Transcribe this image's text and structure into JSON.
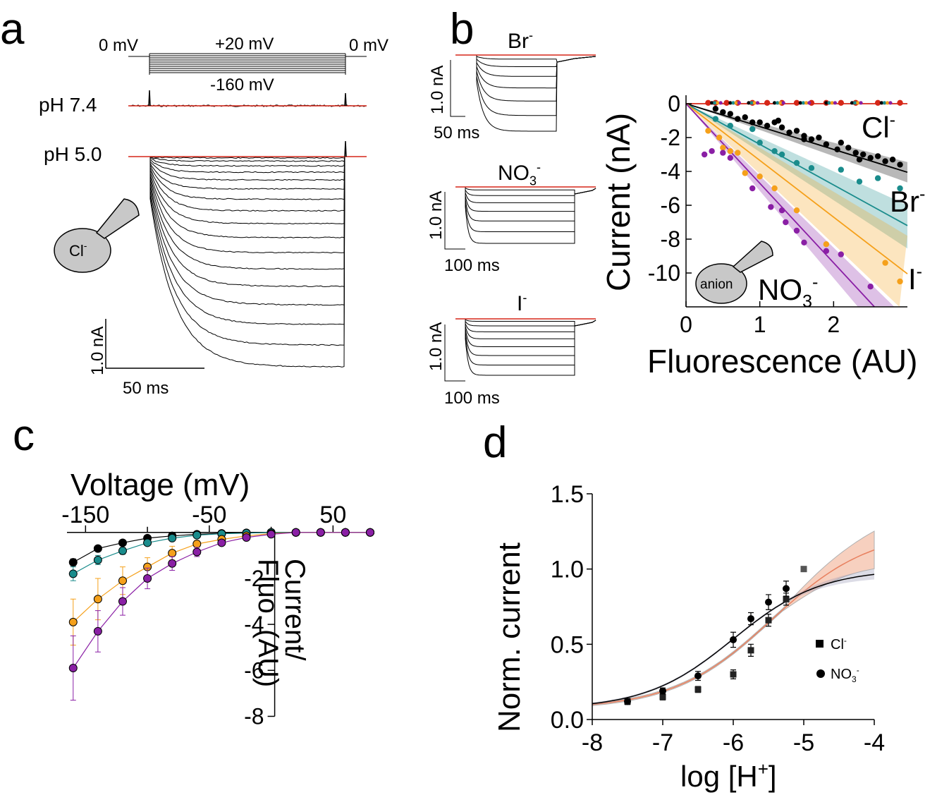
{
  "colors": {
    "black": "#000000",
    "red": "#d62718",
    "teal": "#1a8c8c",
    "orange": "#f5a01a",
    "purple": "#8a1fa5",
    "salmon": "#f0a98a",
    "gray_fill": "#cccccc"
  },
  "panel_a": {
    "letter": "a",
    "protocol": {
      "v_start": "0 mV",
      "v_step": "+20 mV",
      "v_end": "0 mV",
      "v_min": "-160 mV"
    },
    "ph_high": "pH 7.4",
    "ph_low": "pH 5.0",
    "pipette_ion": "Cl",
    "pipette_ion_sup": "-",
    "scale_y": "1.0 nA",
    "scale_x": "50 ms",
    "n_traces": 17
  },
  "panel_b": {
    "letter": "b",
    "traces": [
      {
        "ion": "Br",
        "sup": "-",
        "sub": "",
        "scale_y": "1.0 nA",
        "scale_x": "50 ms"
      },
      {
        "ion": "NO",
        "sup": "-",
        "sub": "3",
        "scale_y": "1.0 nA",
        "scale_x": "100 ms"
      },
      {
        "ion": "I",
        "sup": "-",
        "sub": "",
        "scale_y": "1.0 nA",
        "scale_x": "100 ms"
      }
    ],
    "pipette_label": "anion"
  },
  "panel_c": {
    "letter": "c"
  },
  "panel_d": {
    "letter": "d"
  },
  "chart_data": [
    {
      "id": "b_scatter",
      "type": "scatter",
      "title": "",
      "xlabel": "Fluorescence (AU)",
      "ylabel": "Current (nA)",
      "xlim": [
        0,
        3
      ],
      "ylim": [
        -12,
        0.5
      ],
      "xticks": [
        0,
        1,
        2
      ],
      "yticks": [
        0,
        -2,
        -4,
        -6,
        -8,
        -10
      ],
      "series": [
        {
          "name": "Cl",
          "sup": "-",
          "sub": "",
          "color_key": "black",
          "slope": -1.35,
          "band": [
            -1.15,
            -1.55
          ],
          "points": [
            [
              0.4,
              -0.3
            ],
            [
              0.5,
              -0.5
            ],
            [
              0.6,
              -0.6
            ],
            [
              0.7,
              -0.9
            ],
            [
              0.8,
              -0.8
            ],
            [
              0.9,
              -1.1
            ],
            [
              1.0,
              -1.1
            ],
            [
              1.1,
              -1.3
            ],
            [
              1.2,
              -1.1
            ],
            [
              1.3,
              -1.4
            ],
            [
              1.4,
              -1.7
            ],
            [
              1.5,
              -1.6
            ],
            [
              1.6,
              -1.9
            ],
            [
              1.7,
              -2.1
            ],
            [
              1.8,
              -2.0
            ],
            [
              1.9,
              -2.4
            ],
            [
              2.1,
              -2.3
            ],
            [
              2.2,
              -2.6
            ],
            [
              2.3,
              -2.9
            ],
            [
              2.4,
              -3.0
            ],
            [
              2.5,
              -3.2
            ],
            [
              2.6,
              -3.1
            ],
            [
              2.7,
              -3.4
            ],
            [
              2.8,
              -3.3
            ],
            [
              2.9,
              -3.6
            ],
            [
              1.25,
              -1.0
            ],
            [
              2.05,
              -2.7
            ],
            [
              2.35,
              -3.3
            ],
            [
              1.6,
              -2.1
            ]
          ]
        },
        {
          "name": "Br",
          "sup": "-",
          "sub": "",
          "color_key": "teal",
          "slope": -2.4,
          "band": [
            -2.0,
            -2.85
          ],
          "points": [
            [
              0.4,
              -0.9
            ],
            [
              0.6,
              -1.3
            ],
            [
              0.9,
              -1.5
            ],
            [
              1.0,
              -2.3
            ],
            [
              1.2,
              -2.8
            ],
            [
              1.3,
              -3.0
            ],
            [
              1.5,
              -3.5
            ],
            [
              1.7,
              -3.8
            ],
            [
              2.1,
              -3.9
            ],
            [
              2.35,
              -4.6
            ],
            [
              2.6,
              -4.4
            ],
            [
              2.9,
              -5.0
            ]
          ]
        },
        {
          "name": "I",
          "sup": "-",
          "sub": "",
          "color_key": "orange",
          "slope": -3.35,
          "band": [
            -2.6,
            -4.15
          ],
          "points": [
            [
              0.3,
              -1.6
            ],
            [
              0.45,
              -2.0
            ],
            [
              0.5,
              -2.6
            ],
            [
              0.6,
              -2.8
            ],
            [
              0.7,
              -2.9
            ],
            [
              0.8,
              -4.1
            ],
            [
              1.0,
              -4.3
            ],
            [
              1.2,
              -5.0
            ],
            [
              1.5,
              -6.3
            ],
            [
              1.9,
              -8.3
            ],
            [
              2.7,
              -9.4
            ],
            [
              2.9,
              -10.5
            ]
          ]
        },
        {
          "name": "NO",
          "sup": "-",
          "sub": "3",
          "color_key": "purple",
          "slope": -4.7,
          "band": [
            -4.25,
            -5.15
          ],
          "points": [
            [
              0.25,
              -3.0
            ],
            [
              0.35,
              -2.8
            ],
            [
              0.5,
              -2.9
            ],
            [
              0.6,
              -3.2
            ],
            [
              0.9,
              -5.0
            ],
            [
              1.15,
              -6.1
            ],
            [
              1.3,
              -6.3
            ],
            [
              1.35,
              -7.0
            ],
            [
              1.5,
              -7.5
            ],
            [
              1.6,
              -8.2
            ],
            [
              1.9,
              -8.7
            ],
            [
              2.1,
              -8.9
            ],
            [
              2.5,
              -10.8
            ]
          ]
        },
        {
          "name": "pH 7.4",
          "sup": "",
          "sub": "",
          "color_key": "red",
          "slope": 0.0,
          "band": [
            0.0,
            0.0
          ],
          "points": [
            [
              0.3,
              0.05
            ],
            [
              0.4,
              0.05
            ],
            [
              0.55,
              0.05
            ],
            [
              0.7,
              0.05
            ],
            [
              0.9,
              0.05
            ],
            [
              1.1,
              0.05
            ],
            [
              1.3,
              0.05
            ],
            [
              1.5,
              0.05
            ],
            [
              1.7,
              0.05
            ],
            [
              1.9,
              0.05
            ],
            [
              2.1,
              0.05
            ],
            [
              2.3,
              0.05
            ],
            [
              2.6,
              0.05
            ],
            [
              2.9,
              0.05
            ]
          ]
        }
      ]
    },
    {
      "id": "c_iv",
      "type": "line",
      "title": "",
      "xlabel": "Voltage (mV)",
      "ylabel_line1": "Current/",
      "ylabel_line2": "Fluo. (AU)",
      "xlim": [
        -165,
        80
      ],
      "ylim": [
        -8.2,
        0.3
      ],
      "xticks": [
        -150,
        -50,
        50
      ],
      "yticks": [
        -2,
        -4,
        -6,
        -8
      ],
      "x": [
        -160,
        -140,
        -120,
        -100,
        -80,
        -60,
        -40,
        -20,
        0,
        20,
        40,
        60,
        80
      ],
      "series": [
        {
          "name": "Cl",
          "color_key": "black",
          "values": [
            -1.3,
            -0.7,
            -0.45,
            -0.25,
            -0.15,
            -0.08,
            -0.04,
            -0.02,
            0,
            0,
            0,
            0,
            0
          ],
          "err": [
            0.15,
            0.1,
            0.05,
            0.05,
            0.03,
            0.02,
            0.02,
            0.01,
            0,
            0,
            0,
            0,
            0
          ]
        },
        {
          "name": "Br",
          "color_key": "teal",
          "values": [
            -1.8,
            -1.2,
            -0.8,
            -0.45,
            -0.25,
            -0.12,
            -0.06,
            -0.03,
            0,
            0,
            0,
            0,
            0
          ],
          "err": [
            0.3,
            0.2,
            0.15,
            0.1,
            0.06,
            0.04,
            0.02,
            0.01,
            0,
            0,
            0,
            0,
            0
          ]
        },
        {
          "name": "I",
          "color_key": "orange",
          "values": [
            -3.9,
            -2.9,
            -2.1,
            -1.5,
            -0.9,
            -0.5,
            -0.3,
            -0.15,
            -0.05,
            0,
            0,
            0,
            0
          ],
          "err": [
            1.0,
            0.9,
            0.6,
            0.4,
            0.3,
            0.15,
            0.08,
            0.04,
            0.02,
            0,
            0,
            0,
            0
          ]
        },
        {
          "name": "NO3",
          "color_key": "purple",
          "values": [
            -5.9,
            -4.3,
            -3.0,
            -2.0,
            -1.35,
            -0.85,
            -0.45,
            -0.22,
            -0.08,
            0,
            0,
            0,
            0
          ],
          "err": [
            1.4,
            0.9,
            0.6,
            0.45,
            0.3,
            0.2,
            0.1,
            0.05,
            0.02,
            0,
            0,
            0,
            0
          ]
        }
      ]
    },
    {
      "id": "d_doseresponse",
      "type": "scatter",
      "title": "",
      "xlabel": "log [H",
      "xlabel_sup": "+",
      "xlabel_end": "]",
      "ylabel": "Norm. current",
      "xlim": [
        -8,
        -4
      ],
      "ylim": [
        0,
        1.5
      ],
      "xticks": [
        -8,
        -7,
        -6,
        -5,
        -4
      ],
      "ytick_values": [
        0,
        0.5,
        1,
        1.5
      ],
      "ytick_labels": [
        "0.0",
        "0.5",
        "1.0",
        "1.5"
      ],
      "legend_position": "right",
      "series": [
        {
          "name": "Cl",
          "sup": "-",
          "sub": "",
          "marker": "square",
          "color_key": "black",
          "fit_color_key": "salmon",
          "x": [
            -7.5,
            -7.0,
            -6.5,
            -6.0,
            -5.75,
            -5.5,
            -5.25,
            -5.0
          ],
          "y": [
            0.12,
            0.15,
            0.2,
            0.3,
            0.46,
            0.66,
            0.8,
            1.0
          ],
          "err": [
            0.02,
            0.02,
            0.02,
            0.03,
            0.04,
            0.04,
            0.04,
            0.0
          ],
          "fit": {
            "bottom": 0.07,
            "top": 1.26,
            "ec50": -5.45,
            "hill": 0.62
          }
        },
        {
          "name": "NO",
          "sup": "-",
          "sub": "3",
          "marker": "circle",
          "color_key": "black",
          "fit_color_key": "black",
          "x": [
            -7.5,
            -7.0,
            -6.5,
            -6.0,
            -5.75,
            -5.5,
            -5.25
          ],
          "y": [
            0.12,
            0.19,
            0.29,
            0.53,
            0.67,
            0.78,
            0.87
          ],
          "err": [
            0.02,
            0.02,
            0.03,
            0.05,
            0.04,
            0.05,
            0.05
          ],
          "fit": {
            "bottom": 0.07,
            "top": 1.0,
            "ec50": -6.0,
            "hill": 0.7
          }
        }
      ]
    }
  ]
}
